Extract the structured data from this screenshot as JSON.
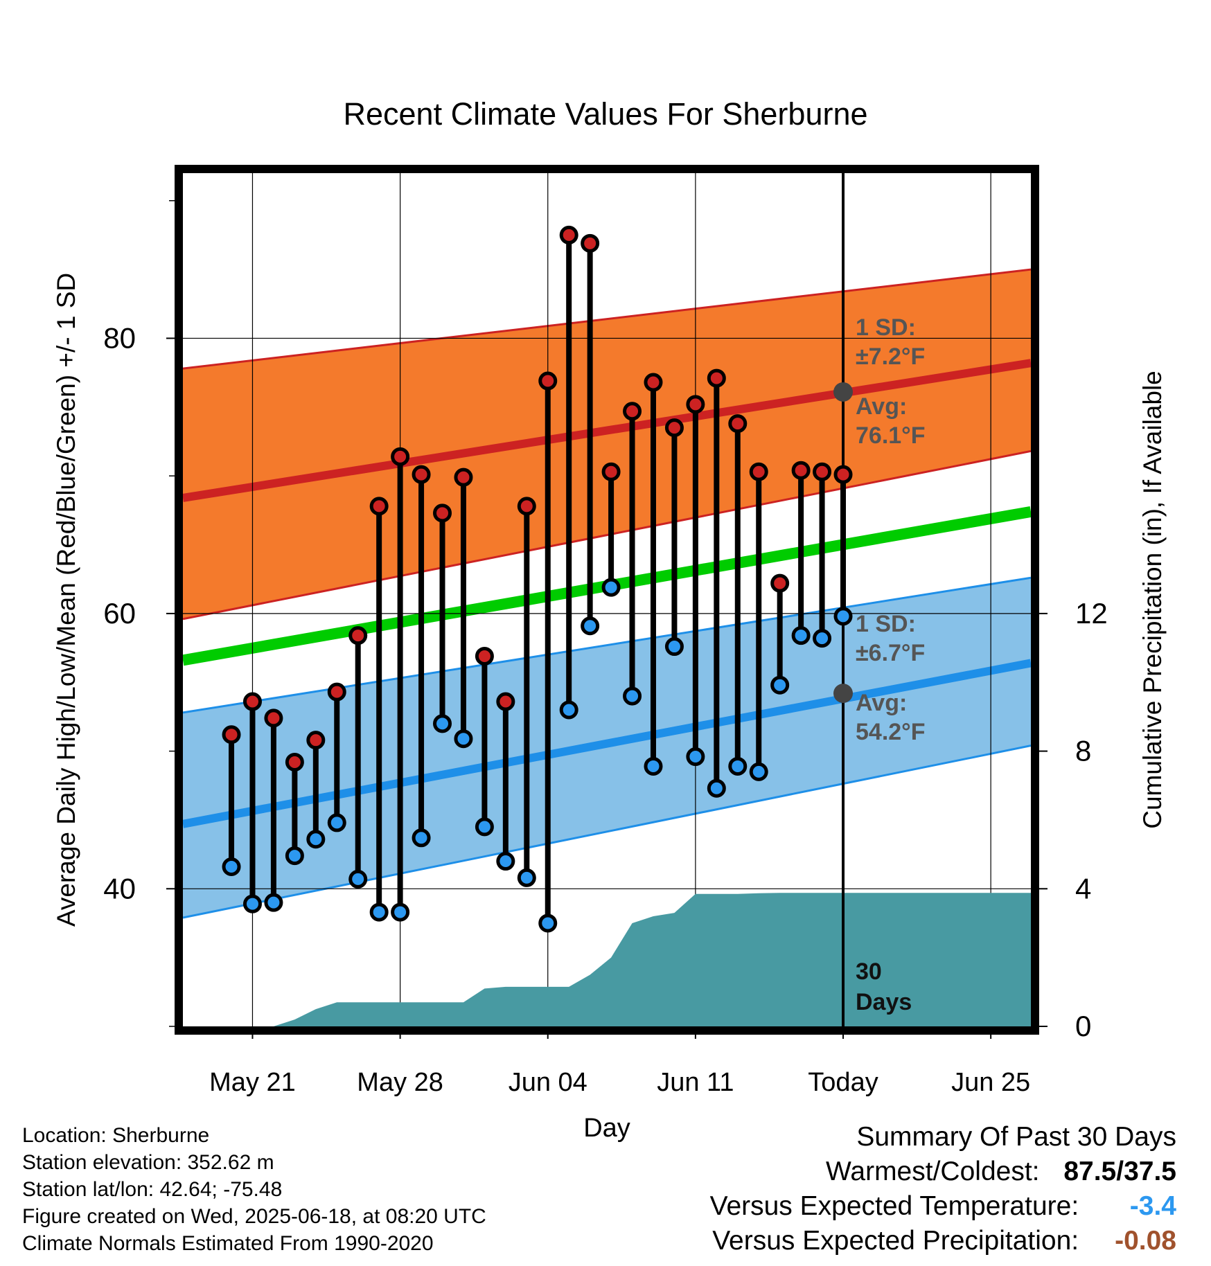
{
  "chart_data": {
    "type": "line",
    "title": "Recent Climate Values For Sherburne",
    "xlabel": "Day",
    "ylabel_left": "Average Daily High/Low/Mean (Red/Blue/Green) +/- 1 SD",
    "ylabel_right": "Cumulative Precipitation (in), If Available",
    "x_ticks": [
      {
        "day": 2,
        "label": "May 21"
      },
      {
        "day": 9,
        "label": "May 28"
      },
      {
        "day": 16,
        "label": "Jun 04"
      },
      {
        "day": 23,
        "label": "Jun 11"
      },
      {
        "day": 30,
        "label": "Today"
      },
      {
        "day": 37,
        "label": "Jun 25"
      }
    ],
    "xlim": [
      -1.3,
      38.9
    ],
    "ylim_left": [
      30,
      92
    ],
    "left_ticks": [
      40,
      60,
      80
    ],
    "ylim_right": [
      0,
      24.8
    ],
    "right_ticks": [
      0,
      4,
      8,
      12
    ],
    "today_day": 30,
    "observed_days": [
      1,
      2,
      3,
      4,
      5,
      6,
      7,
      8,
      9,
      10,
      11,
      12,
      13,
      14,
      15,
      16,
      17,
      18,
      19,
      20,
      21,
      22,
      23,
      24,
      25,
      26,
      27,
      28,
      29,
      30
    ],
    "daily_high": [
      51.2,
      53.6,
      52.4,
      49.2,
      50.8,
      54.3,
      58.4,
      67.8,
      71.4,
      70.1,
      67.3,
      69.9,
      56.9,
      53.6,
      67.8,
      76.9,
      87.5,
      86.9,
      70.3,
      74.7,
      76.8,
      73.5,
      75.2,
      77.1,
      73.8,
      70.3,
      62.2,
      70.4,
      70.3,
      70.1
    ],
    "daily_low": [
      41.6,
      38.9,
      39.0,
      42.4,
      43.6,
      44.8,
      40.7,
      38.3,
      38.3,
      43.7,
      52.0,
      50.9,
      44.5,
      42.0,
      40.8,
      37.5,
      53.0,
      59.1,
      61.9,
      54.0,
      48.9,
      57.6,
      49.6,
      47.3,
      48.9,
      48.5,
      54.8,
      58.4,
      58.2,
      59.8
    ],
    "normal_days": [
      -1.3,
      38.9
    ],
    "normal_high": [
      68.4,
      78.2
    ],
    "normal_high_upper": [
      77.8,
      85.0
    ],
    "normal_high_lower": [
      59.6,
      71.8
    ],
    "normal_mean": [
      56.6,
      67.4
    ],
    "normal_low": [
      44.7,
      56.4
    ],
    "normal_low_upper": [
      52.8,
      62.6
    ],
    "normal_low_lower": [
      37.9,
      50.4
    ],
    "precip_days": [
      1,
      2,
      3,
      4,
      5,
      6,
      7,
      8,
      9,
      10,
      11,
      12,
      13,
      14,
      15,
      16,
      17,
      18,
      19,
      20,
      21,
      22,
      23,
      24,
      25,
      26,
      27,
      28,
      29,
      30,
      38.9
    ],
    "precip_cumulative": [
      0.0,
      0.0,
      0.0,
      0.2,
      0.5,
      0.7,
      0.7,
      0.7,
      0.7,
      0.7,
      0.7,
      0.7,
      1.1,
      1.15,
      1.15,
      1.15,
      1.15,
      1.5,
      2.0,
      3.0,
      3.2,
      3.3,
      3.85,
      3.85,
      3.85,
      3.87,
      3.88,
      3.88,
      3.88,
      3.88,
      3.88
    ],
    "annotations": {
      "high_sd_label": "1 SD:",
      "high_sd_value": "±7.2°F",
      "high_avg_label": "Avg:",
      "high_avg_value": "76.1°F",
      "low_sd_label": "1 SD:",
      "low_sd_value": "±6.7°F",
      "low_avg_label": "Avg:",
      "low_avg_value": "54.2°F",
      "days_number": "30",
      "days_word": "Days"
    },
    "today_markers": {
      "high_avg": 76.1,
      "low_avg": 54.2
    },
    "colors": {
      "high_band": "#f47a2c",
      "high_line": "#cc2222",
      "mean_line": "#00cc00",
      "low_band": "#87c1e8",
      "low_line": "#1e8fe8",
      "precip_fill": "#489aa2",
      "high_marker": "#cc2222",
      "low_marker": "#2c98f0",
      "annotation_text": "#555555",
      "today_marker": "#444444"
    },
    "grid": true
  },
  "footer": {
    "location": "Location: Sherburne",
    "elevation": "Station elevation: 352.62 m",
    "latlon": "Station lat/lon: 42.64; -75.48",
    "created": "Figure created on Wed, 2025-06-18, at 08:20 UTC",
    "normals": "Climate Normals Estimated From 1990-2020"
  },
  "summary": {
    "title": "Summary Of Past 30 Days",
    "warmest_label": "Warmest/Coldest:",
    "warmest_value": "87.5/37.5",
    "temp_label": "Versus Expected Temperature:",
    "temp_value": "-3.4",
    "temp_color": "#2c98f0",
    "precip_label": "Versus Expected Precipitation:",
    "precip_value": "-0.08",
    "precip_color": "#a0522d"
  }
}
